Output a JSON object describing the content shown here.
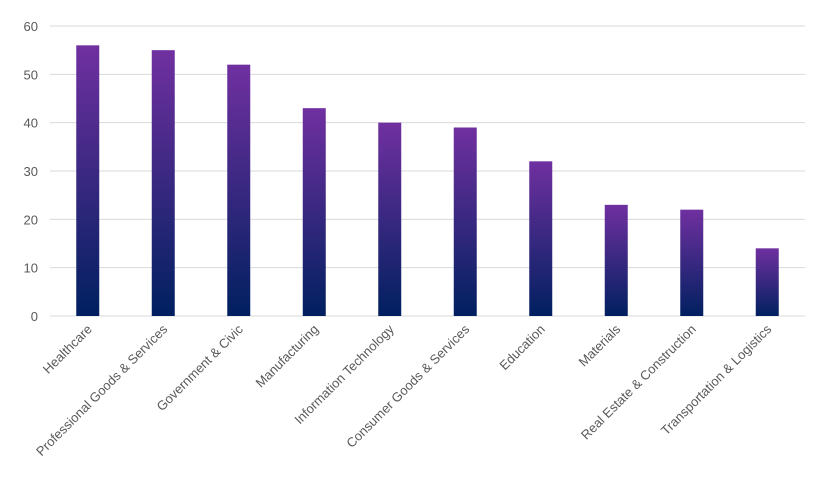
{
  "chart_data": {
    "type": "bar",
    "title": "",
    "xlabel": "",
    "ylabel": "",
    "categories": [
      "Healthcare",
      "Professional Goods & Services",
      "Government & Civic",
      "Manufacturing",
      "Information Technology",
      "Consumer Goods & Services",
      "Education",
      "Materials",
      "Real Estate & Construction",
      "Transportation & Logistics"
    ],
    "values": [
      56,
      55,
      52,
      43,
      40,
      39,
      32,
      23,
      22,
      14
    ],
    "ylim": [
      0,
      60
    ],
    "yticks": [
      0,
      10,
      20,
      30,
      40,
      50,
      60
    ],
    "grid": true,
    "legend": "none",
    "colors": {
      "bar_top": "#7030A0",
      "bar_bottom": "#002060",
      "grid": "#D9D9D9",
      "text": "#595959"
    }
  }
}
